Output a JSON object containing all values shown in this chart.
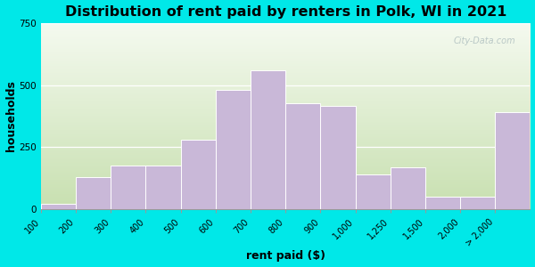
{
  "title": "Distribution of rent paid by renters in Polk, WI in 2021",
  "xlabel": "rent paid ($)",
  "ylabel": "households",
  "tick_labels": [
    "100",
    "200",
    "300",
    "400",
    "500",
    "600",
    "700",
    "800",
    "900",
    "1,000",
    "1,250",
    "1,500",
    "2,000",
    "> 2,000"
  ],
  "bar_heights": [
    20,
    130,
    175,
    175,
    280,
    480,
    560,
    425,
    415,
    140,
    170,
    50,
    50,
    390
  ],
  "bar_color": "#c9b8d8",
  "bar_edgecolor": "#ffffff",
  "background_color": "#00e8e8",
  "ylim": [
    0,
    750
  ],
  "yticks": [
    0,
    250,
    500,
    750
  ],
  "title_fontsize": 11.5,
  "axis_label_fontsize": 9,
  "tick_fontsize": 7,
  "watermark": "City-Data.com"
}
